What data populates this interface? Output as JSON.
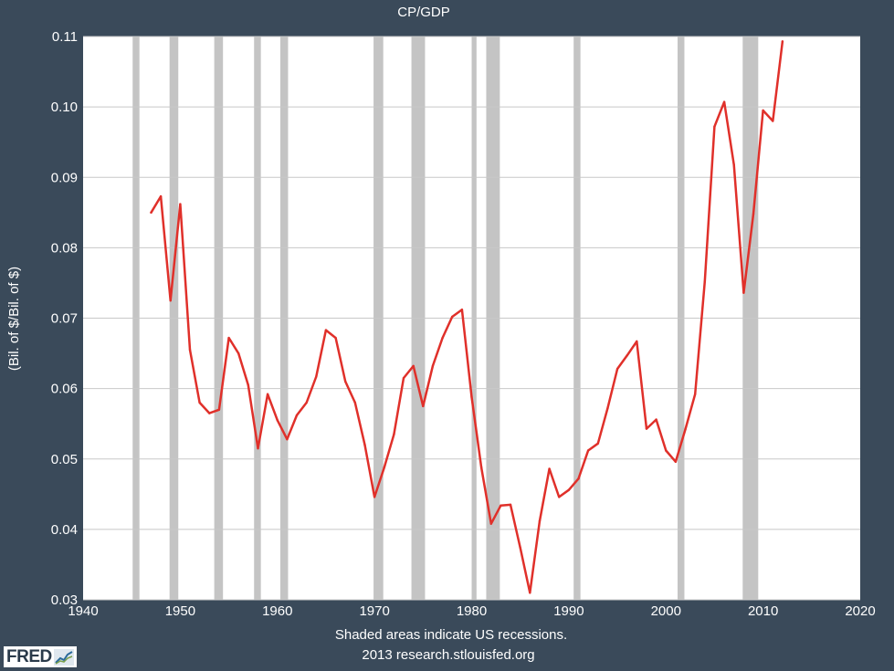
{
  "chart_data": {
    "type": "line",
    "title": "CP/GDP",
    "ylabel": "(Bil. of $/Bil. of $)",
    "xlabel": "",
    "xlim": [
      1940,
      2020
    ],
    "ylim": [
      0.03,
      0.11
    ],
    "x_ticks": [
      1940,
      1950,
      1960,
      1970,
      1980,
      1990,
      2000,
      2010,
      2020
    ],
    "x_tick_labels": [
      "1940",
      "1950",
      "1960",
      "1970",
      "1980",
      "1990",
      "2000",
      "2010",
      "2020"
    ],
    "y_ticks": [
      0.03,
      0.04,
      0.05,
      0.06,
      0.07,
      0.08,
      0.09,
      0.1,
      0.11
    ],
    "y_tick_labels": [
      "0.03",
      "0.04",
      "0.05",
      "0.06",
      "0.07",
      "0.08",
      "0.09",
      "0.10",
      "0.11"
    ],
    "grid": true,
    "recessions": [
      [
        1945.1,
        1945.8
      ],
      [
        1948.9,
        1949.8
      ],
      [
        1953.5,
        1954.4
      ],
      [
        1957.6,
        1958.3
      ],
      [
        1960.3,
        1961.1
      ],
      [
        1969.9,
        1970.9
      ],
      [
        1973.8,
        1975.2
      ],
      [
        1980.0,
        1980.5
      ],
      [
        1981.5,
        1982.9
      ],
      [
        1990.5,
        1991.2
      ],
      [
        2001.2,
        2001.9
      ],
      [
        2007.9,
        2009.5
      ]
    ],
    "series": [
      {
        "color": "#e0302a",
        "x": [
          1947,
          1948,
          1949,
          1950,
          1951,
          1952,
          1953,
          1954,
          1955,
          1956,
          1957,
          1958,
          1959,
          1960,
          1961,
          1962,
          1963,
          1964,
          1965,
          1966,
          1967,
          1968,
          1969,
          1970,
          1971,
          1972,
          1973,
          1974,
          1975,
          1976,
          1977,
          1978,
          1979,
          1980,
          1981,
          1982,
          1983,
          1984,
          1985,
          1986,
          1987,
          1988,
          1989,
          1990,
          1991,
          1992,
          1993,
          1994,
          1995,
          1996,
          1997,
          1998,
          1999,
          2000,
          2001,
          2002,
          2003,
          2004,
          2005,
          2006,
          2007,
          2008,
          2009,
          2010,
          2011,
          2012
        ],
        "values": [
          0.085,
          0.0873,
          0.0725,
          0.0862,
          0.0655,
          0.058,
          0.0565,
          0.057,
          0.0672,
          0.065,
          0.0605,
          0.0515,
          0.0592,
          0.0555,
          0.0528,
          0.0562,
          0.058,
          0.0617,
          0.0683,
          0.0672,
          0.061,
          0.058,
          0.052,
          0.0446,
          0.0488,
          0.0535,
          0.0615,
          0.0632,
          0.0575,
          0.0632,
          0.0672,
          0.0702,
          0.0712,
          0.0588,
          0.0488,
          0.0408,
          0.0434,
          0.0435,
          0.0374,
          0.031,
          0.0412,
          0.0486,
          0.0446,
          0.0456,
          0.0472,
          0.0512,
          0.0522,
          0.0572,
          0.0628,
          0.0647,
          0.0667,
          0.0543,
          0.0556,
          0.0512,
          0.0496,
          0.0542,
          0.0592,
          0.0752,
          0.0972,
          0.1007,
          0.0918,
          0.0736,
          0.0848,
          0.0995,
          0.098,
          0.1093
        ]
      }
    ]
  },
  "footer": {
    "note": "Shaded areas indicate US recessions.",
    "source": "2013 research.stlouisfed.org"
  },
  "logo": {
    "text": "FRED"
  },
  "colors": {
    "background": "#3a4a5a",
    "plot_background": "#ffffff",
    "recession_shade": "#c4c4c4",
    "gridline": "#c8c8c8"
  }
}
